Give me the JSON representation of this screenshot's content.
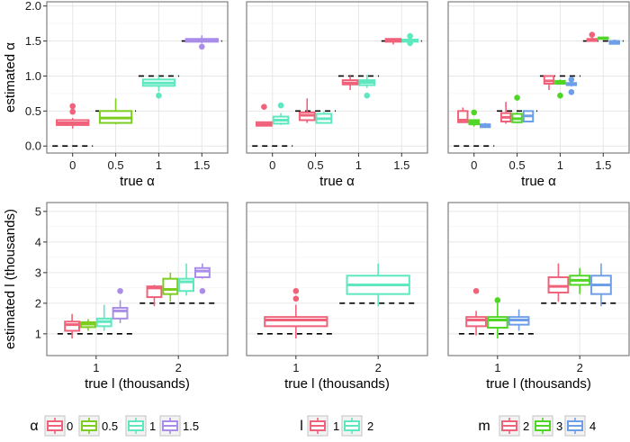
{
  "chart_data": [
    {
      "type": "box",
      "row": 0,
      "col": 0,
      "xlabel": "true α",
      "ylabel": "estimated α",
      "xticks": [
        "0",
        "0.5",
        "1",
        "1.5"
      ],
      "yticks": [
        "0.0",
        "0.5",
        "1.0",
        "1.5",
        "2.0"
      ],
      "ytick_values": [
        0,
        0.5,
        1,
        1.5,
        2
      ],
      "minor_y": [
        0.25,
        0.75,
        1.25,
        1.75
      ],
      "ylim": [
        -0.1,
        2.06
      ],
      "true_values": [
        0,
        0.5,
        1,
        1.5
      ],
      "legend": 0,
      "ngroups": 1,
      "boxes": [
        [
          0,
          0,
          [
            0.25,
            0.3,
            0.33,
            0.37,
            0.4
          ],
          [
            0.49,
            0.57
          ]
        ],
        [
          1,
          1,
          [
            0.31,
            0.33,
            0.4,
            0.5,
            0.68
          ],
          []
        ],
        [
          2,
          2,
          [
            0.78,
            0.86,
            0.9,
            0.95,
            1.0
          ],
          [
            0.72
          ]
        ],
        [
          3,
          3,
          [
            1.47,
            1.49,
            1.51,
            1.53,
            1.58
          ],
          [
            1.42
          ]
        ]
      ]
    },
    {
      "type": "box",
      "row": 0,
      "col": 1,
      "xlabel": "true α",
      "xticks": [
        "0",
        "0.5",
        "1",
        "1.5"
      ],
      "ytick_values": [
        0,
        0.5,
        1,
        1.5,
        2
      ],
      "minor_y": [
        0.25,
        0.75,
        1.25,
        1.75
      ],
      "ylim": [
        -0.1,
        2.06
      ],
      "true_values": [
        0,
        0.5,
        1,
        1.5
      ],
      "legend": 1,
      "ngroups": 2,
      "boxes": [
        [
          0,
          0,
          [
            0.28,
            0.29,
            0.31,
            0.34,
            0.34
          ],
          [
            0.56
          ]
        ],
        [
          0,
          1,
          [
            0.3,
            0.32,
            0.37,
            0.42,
            0.47
          ],
          [
            0.58
          ]
        ],
        [
          1,
          0,
          [
            0.33,
            0.37,
            0.44,
            0.48,
            0.68
          ],
          []
        ],
        [
          1,
          1,
          [
            0.33,
            0.33,
            0.39,
            0.46,
            0.49
          ],
          []
        ],
        [
          2,
          0,
          [
            0.8,
            0.88,
            0.9,
            0.94,
            1.0
          ],
          []
        ],
        [
          2,
          1,
          [
            0.83,
            0.87,
            0.91,
            0.94,
            1.02
          ],
          [
            0.72
          ]
        ],
        [
          3,
          0,
          [
            1.45,
            1.49,
            1.51,
            1.53,
            1.54
          ],
          []
        ],
        [
          3,
          1,
          [
            1.47,
            1.49,
            1.5,
            1.52,
            1.53
          ],
          [
            1.47,
            1.57
          ]
        ]
      ]
    },
    {
      "type": "box",
      "row": 0,
      "col": 2,
      "xlabel": "true α",
      "xticks": [
        "0",
        "0.5",
        "1",
        "1.5"
      ],
      "ytick_values": [
        0,
        0.5,
        1,
        1.5,
        2
      ],
      "minor_y": [
        0.25,
        0.75,
        1.25,
        1.75
      ],
      "ylim": [
        -0.1,
        2.06
      ],
      "true_values": [
        0,
        0.5,
        1,
        1.5
      ],
      "legend": 2,
      "ngroups": 3,
      "boxes": [
        [
          0,
          0,
          [
            0.33,
            0.34,
            0.37,
            0.5,
            0.55
          ],
          []
        ],
        [
          0,
          1,
          [
            0.28,
            0.31,
            0.34,
            0.37,
            0.38
          ],
          [
            0.48
          ]
        ],
        [
          0,
          2,
          [
            0.26,
            0.27,
            0.29,
            0.31,
            0.33
          ],
          []
        ],
        [
          1,
          0,
          [
            0.32,
            0.35,
            0.41,
            0.47,
            0.63
          ],
          []
        ],
        [
          1,
          1,
          [
            0.33,
            0.34,
            0.39,
            0.46,
            0.48
          ],
          [
            0.69
          ]
        ],
        [
          1,
          2,
          [
            0.35,
            0.35,
            0.43,
            0.5,
            0.5
          ],
          []
        ],
        [
          2,
          0,
          [
            0.8,
            0.89,
            0.93,
            1.0,
            1.01
          ],
          []
        ],
        [
          2,
          1,
          [
            0.88,
            0.89,
            0.91,
            0.93,
            0.95
          ],
          [
            0.72
          ]
        ],
        [
          2,
          2,
          [
            0.85,
            0.87,
            0.88,
            0.9,
            0.94
          ],
          [
            0.77,
            0.95
          ]
        ],
        [
          3,
          0,
          [
            1.49,
            1.5,
            1.52,
            1.53,
            1.55
          ],
          [
            1.59
          ]
        ],
        [
          3,
          1,
          [
            1.53,
            1.53,
            1.54,
            1.55,
            1.55
          ],
          []
        ],
        [
          3,
          2,
          [
            1.45,
            1.46,
            1.48,
            1.5,
            1.52
          ],
          []
        ]
      ]
    },
    {
      "type": "box",
      "row": 1,
      "col": 0,
      "xlabel": "true l (thousands)",
      "ylabel": "estimated l (thousands)",
      "xticks": [
        "1",
        "2"
      ],
      "yticks": [
        "1",
        "2",
        "3",
        "4",
        "5"
      ],
      "ytick_values": [
        1,
        2,
        3,
        4,
        5
      ],
      "minor_y": [
        1.5,
        2.5,
        3.5,
        4.5
      ],
      "ylim": [
        0.29,
        5.29
      ],
      "true_values": [
        1,
        2
      ],
      "legend": 0,
      "ngroups": 4,
      "boxes": [
        [
          0,
          0,
          [
            0.85,
            1.1,
            1.3,
            1.4,
            1.65
          ],
          []
        ],
        [
          0,
          1,
          [
            1.1,
            1.22,
            1.32,
            1.38,
            1.48
          ],
          []
        ],
        [
          0,
          2,
          [
            1.1,
            1.25,
            1.4,
            1.5,
            1.95
          ],
          []
        ],
        [
          0,
          3,
          [
            1.35,
            1.5,
            1.75,
            1.85,
            2.1
          ],
          [
            2.4
          ]
        ],
        [
          1,
          0,
          [
            1.9,
            2.2,
            2.5,
            2.55,
            2.6
          ],
          []
        ],
        [
          1,
          1,
          [
            2.05,
            2.3,
            2.45,
            2.8,
            3.0
          ],
          []
        ],
        [
          1,
          2,
          [
            2.25,
            2.4,
            2.7,
            2.8,
            3.3
          ],
          []
        ],
        [
          1,
          3,
          [
            2.8,
            2.85,
            3.05,
            3.15,
            3.3
          ],
          [
            2.4
          ]
        ]
      ]
    },
    {
      "type": "box",
      "row": 1,
      "col": 1,
      "xlabel": "true l (thousands)",
      "xticks": [
        "1",
        "2"
      ],
      "ytick_values": [
        1,
        2,
        3,
        4,
        5
      ],
      "minor_y": [
        1.5,
        2.5,
        3.5,
        4.5
      ],
      "ylim": [
        0.29,
        5.29
      ],
      "true_values": [
        1,
        2
      ],
      "legend": 1,
      "ngroups": 1,
      "boxes": [
        [
          0,
          0,
          [
            0.85,
            1.25,
            1.45,
            1.55,
            1.95
          ],
          [
            2.15,
            2.4
          ]
        ],
        [
          1,
          1,
          [
            1.9,
            2.3,
            2.6,
            2.9,
            3.3
          ],
          []
        ]
      ]
    },
    {
      "type": "box",
      "row": 1,
      "col": 2,
      "xlabel": "true l (thousands)",
      "xticks": [
        "1",
        "2"
      ],
      "ytick_values": [
        1,
        2,
        3,
        4,
        5
      ],
      "minor_y": [
        1.5,
        2.5,
        3.5,
        4.5
      ],
      "ylim": [
        0.29,
        5.29
      ],
      "true_values": [
        1,
        2
      ],
      "legend": 2,
      "ngroups": 3,
      "boxes": [
        [
          0,
          0,
          [
            0.95,
            1.25,
            1.45,
            1.55,
            1.75
          ],
          [
            2.4
          ]
        ],
        [
          0,
          1,
          [
            0.85,
            1.2,
            1.45,
            1.55,
            2.0
          ],
          [
            2.1
          ]
        ],
        [
          0,
          2,
          [
            1.1,
            1.3,
            1.45,
            1.55,
            1.8
          ],
          []
        ],
        [
          1,
          0,
          [
            2.05,
            2.35,
            2.55,
            2.85,
            3.3
          ],
          []
        ],
        [
          1,
          1,
          [
            2.3,
            2.6,
            2.75,
            2.9,
            3.15
          ],
          []
        ],
        [
          1,
          2,
          [
            1.9,
            2.3,
            2.6,
            2.9,
            3.3
          ],
          []
        ]
      ]
    }
  ],
  "legends": [
    {
      "title": "α",
      "items": [
        {
          "label": "0",
          "color": "#f0627a"
        },
        {
          "label": "0.5",
          "color": "#7ccd1f"
        },
        {
          "label": "1",
          "color": "#5ee8c0"
        },
        {
          "label": "1.5",
          "color": "#a98de8"
        }
      ]
    },
    {
      "title": "l",
      "items": [
        {
          "label": "1",
          "color": "#f0627a"
        },
        {
          "label": "2",
          "color": "#5ee8c0"
        }
      ]
    },
    {
      "title": "m",
      "items": [
        {
          "label": "2",
          "color": "#f0627a"
        },
        {
          "label": "3",
          "color": "#4fd624"
        },
        {
          "label": "4",
          "color": "#6f9ee8"
        }
      ]
    }
  ]
}
